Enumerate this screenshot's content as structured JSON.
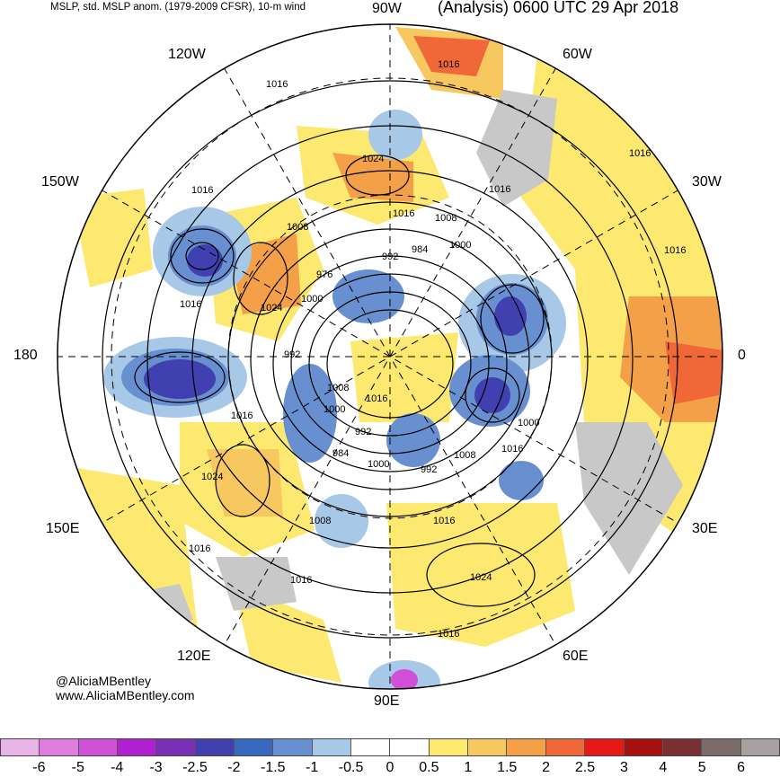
{
  "header": {
    "left": "MSLP, std. MSLP anom. (1979-2009 CFSR), 10-m wind",
    "right": "(Analysis) 0600 UTC 29 Apr 2018"
  },
  "longitude_labels": {
    "w90": "90W",
    "w60": "60W",
    "w120": "120W",
    "w150": "150W",
    "w30": "30W",
    "lon180": "180",
    "lon0": "0",
    "e150": "150E",
    "e30": "30E",
    "e120": "120E",
    "e60": "60E",
    "e90": "90E"
  },
  "credit": {
    "handle": "@AliciaMBentley",
    "site": "www.AliciaMBentley.com"
  },
  "isobar_labels": [
    "1016",
    "1016",
    "1016",
    "1024",
    "1016",
    "1008",
    "1016",
    "1008",
    "1000",
    "984",
    "992",
    "1016",
    "1016",
    "976",
    "1024",
    "1000",
    "1016",
    "992",
    "1008",
    "1000",
    "1016",
    "992",
    "984",
    "1000",
    "992",
    "1008",
    "1016",
    "1000",
    "1024",
    "1008",
    "1016",
    "1016",
    "1016",
    "1024",
    "1016",
    "1016"
  ],
  "colorbar": {
    "colors": [
      "#e8b4e8",
      "#e07ee0",
      "#d050d8",
      "#b020d0",
      "#7830b8",
      "#4040b0",
      "#3868c0",
      "#6890d0",
      "#a8c8e8",
      "#ffffff",
      "#ffffff",
      "#fde870",
      "#f8c860",
      "#f4a048",
      "#f06838",
      "#e81818",
      "#a81010",
      "#7a3030",
      "#7a6a6a",
      "#a8a0a0"
    ],
    "ticks": [
      "-6",
      "-5",
      "-4",
      "-3",
      "-2.5",
      "-2",
      "-1.5",
      "-1",
      "-0.5",
      "0",
      "0.5",
      "1",
      "1.5",
      "2",
      "2.5",
      "3",
      "4",
      "5",
      "6"
    ]
  },
  "colors": {
    "land": "#c8c8c8",
    "contour": "#000000",
    "grid": "#000000"
  }
}
